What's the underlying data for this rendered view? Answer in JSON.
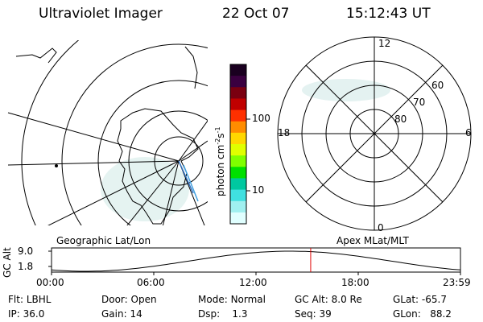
{
  "header": {
    "instrument": "Ultraviolet Imager",
    "date": "22 Oct 07",
    "time": "15:12:43 UT"
  },
  "colorbar": {
    "unit_label": "photon cm",
    "unit_sup1": "-2",
    "unit_mid": "s",
    "unit_sup2": "-1",
    "ticks": [
      "100",
      "10"
    ],
    "colors": [
      "#1a0020",
      "#3a0040",
      "#7a0010",
      "#c00000",
      "#ff3000",
      "#ff8c00",
      "#ffd700",
      "#e0ff00",
      "#80ff00",
      "#00e000",
      "#00c8a0",
      "#40e0e0",
      "#a0f0f0",
      "#e0ffff"
    ]
  },
  "geo_panel": {
    "caption": "Geographic Lat/Lon"
  },
  "apex_panel": {
    "caption": "Apex  MLat/MLT",
    "mlt_labels": {
      "top": "12",
      "left": "18",
      "right": "6",
      "bottom": "0"
    },
    "mlat_labels": [
      "60",
      "70",
      "80"
    ]
  },
  "altitude_plot": {
    "ylabel": "GC Alt",
    "yticks": [
      "9.0",
      "1.8"
    ],
    "xticks": [
      "00:00",
      "06:00",
      "12:00",
      "18:00",
      "23:59"
    ],
    "marker_hour": 15.21
  },
  "status": {
    "flt_label": "Flt:",
    "flt_value": "LBHL",
    "ip_label": "IP:",
    "ip_value": "36.0",
    "door_label": "Door:",
    "door_value": "Open",
    "gain_label": "Gain:",
    "gain_value": "14",
    "mode_label": "Mode:",
    "mode_value": "Normal",
    "dsp_label": "Dsp:",
    "dsp_value": "1.3",
    "gcalt_label": "GC Alt:",
    "gcalt_value": "8.0 Re",
    "seq_label": "Seq:",
    "seq_value": "39",
    "glat_label": "GLat:",
    "glat_value": "-65.7",
    "glon_label": "GLon:",
    "glon_value": "88.2"
  }
}
